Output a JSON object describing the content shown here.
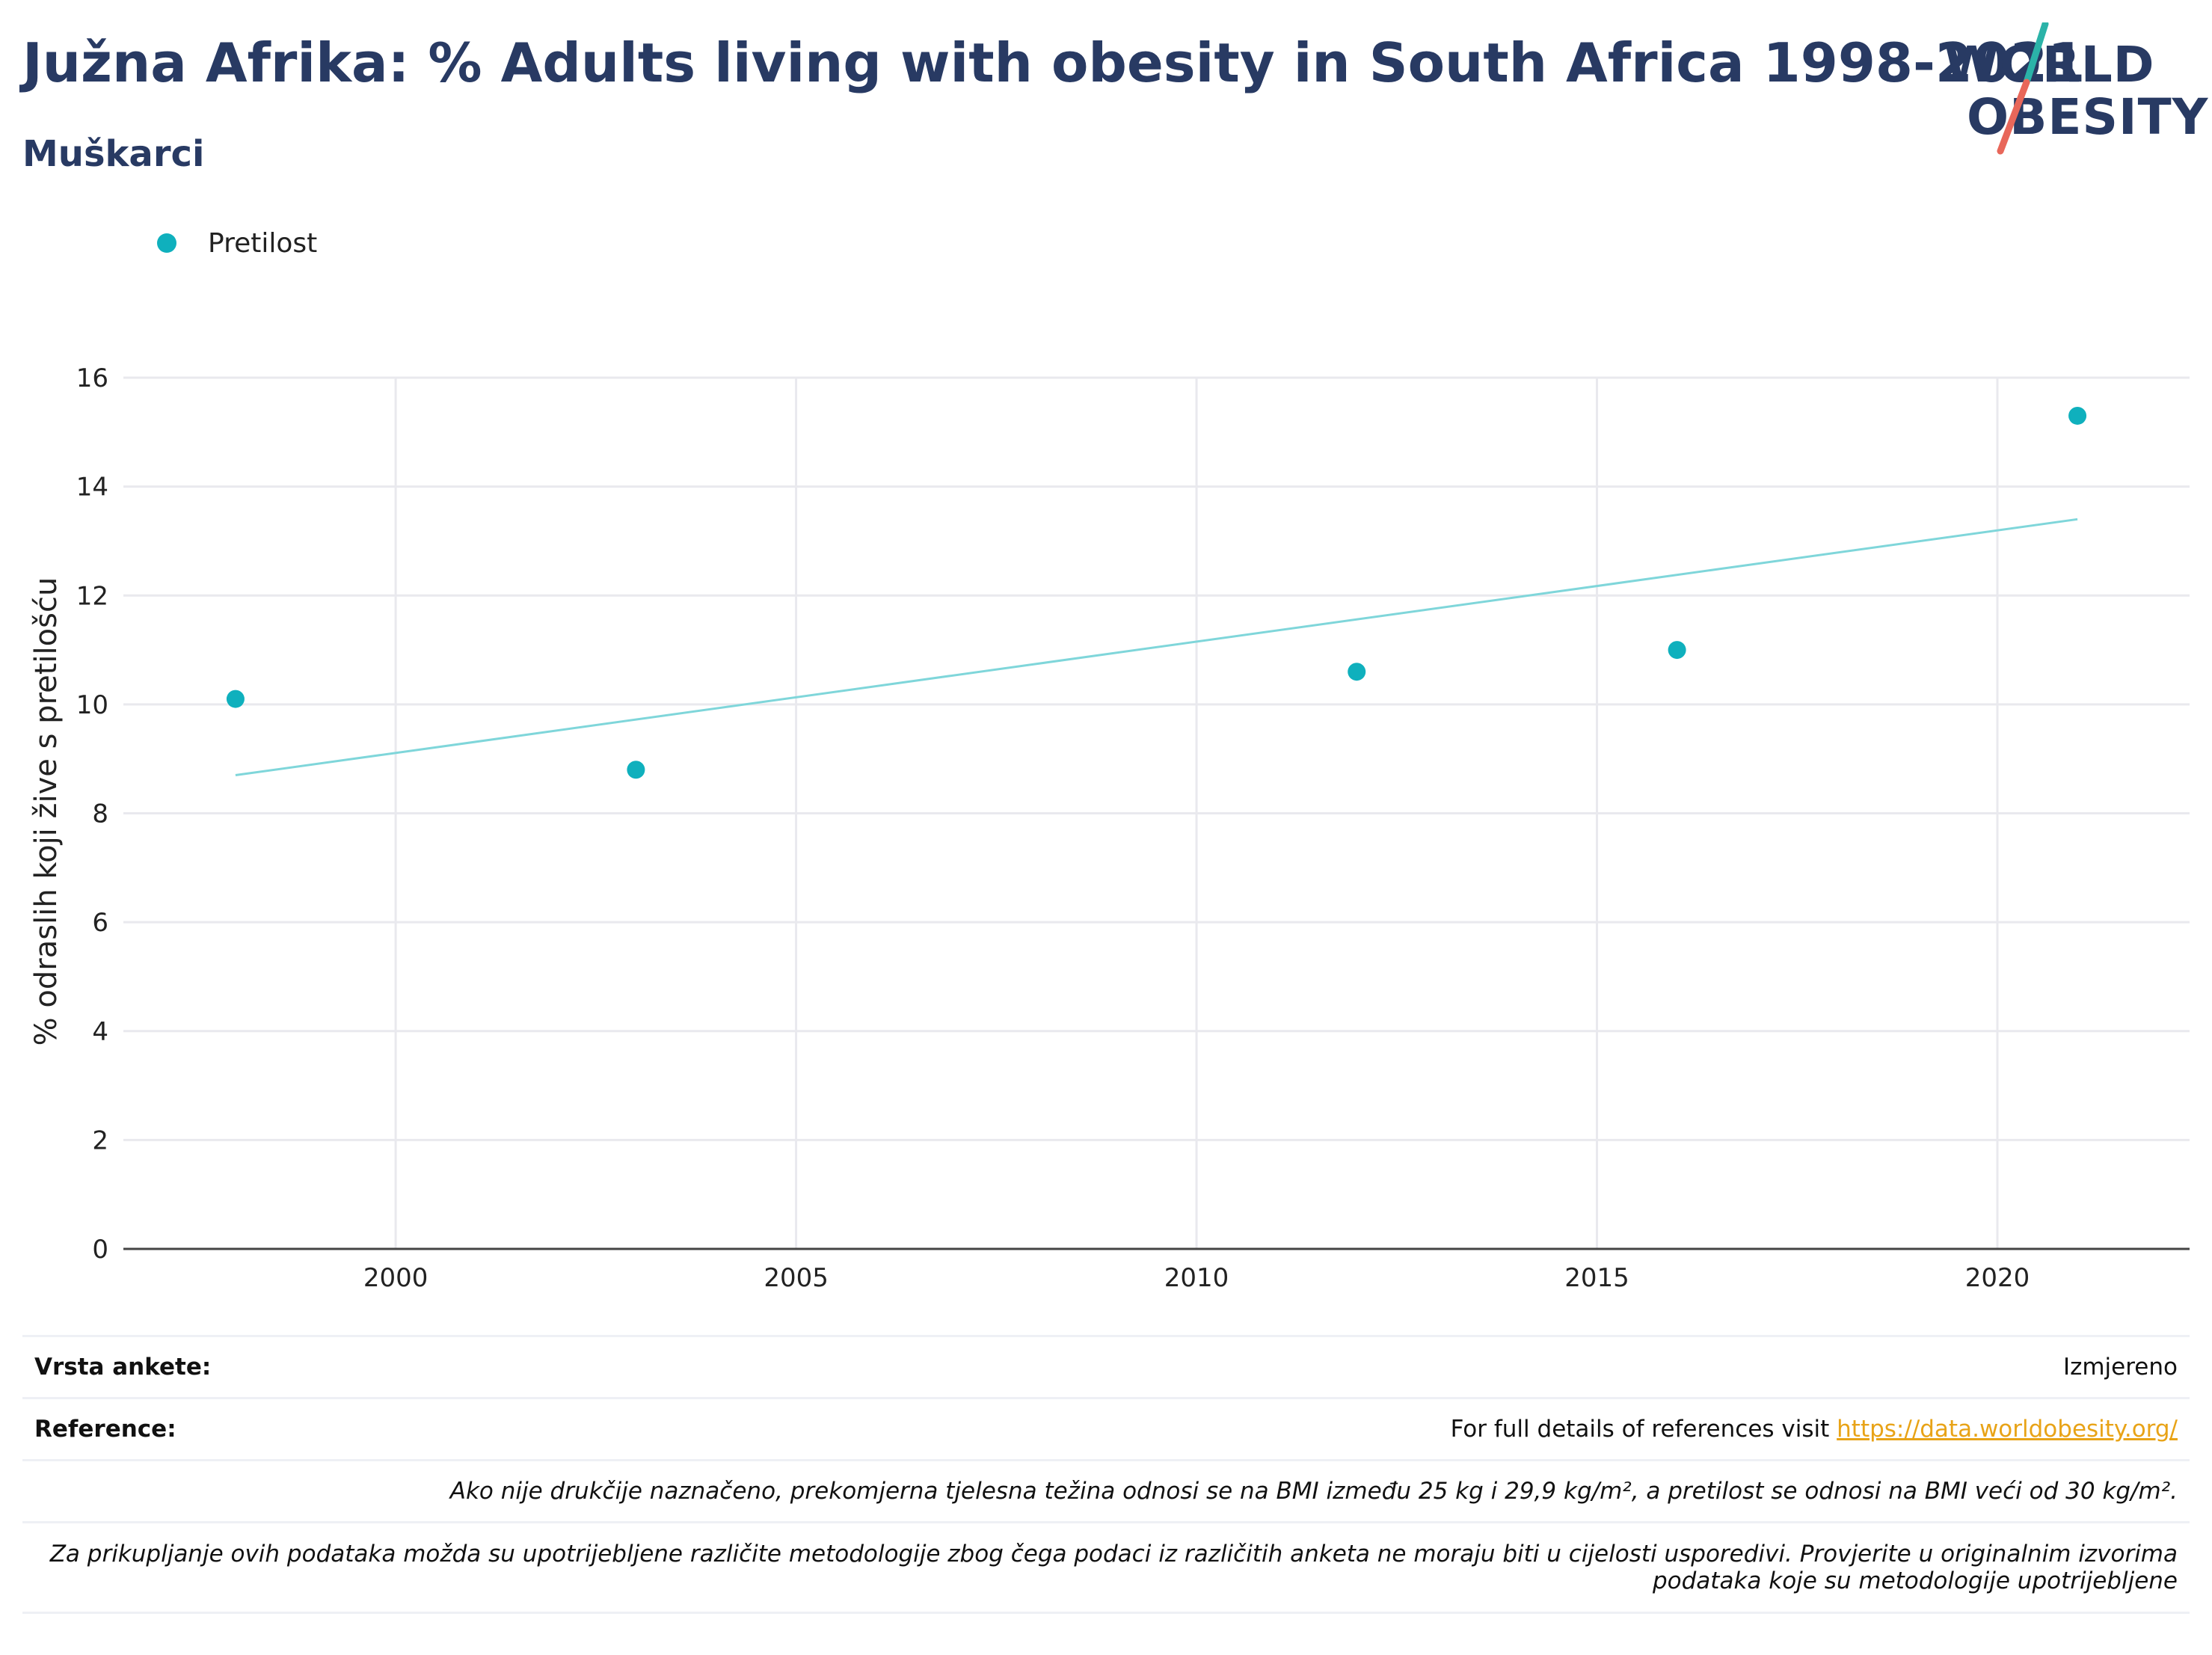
{
  "header": {
    "title": "Južna Afrika: % Adults living with obesity in South Africa 1998-2021",
    "subtitle": "Muškarci"
  },
  "logo": {
    "line1": "WORLD",
    "line2": "OBESITY",
    "accent_teal": "#2bb3a8",
    "accent_red": "#e8675a"
  },
  "legend": {
    "items": [
      {
        "label": "Pretilost",
        "color": "#0fb0bd"
      }
    ]
  },
  "chart_data": {
    "type": "scatter",
    "ylabel": "% odraslih koji žive s pretilošću",
    "xlabel": "",
    "xlim": [
      1996.6,
      2022.4
    ],
    "ylim": [
      0,
      16
    ],
    "x_ticks": [
      2000,
      2005,
      2010,
      2015,
      2020
    ],
    "y_ticks": [
      0,
      2,
      4,
      6,
      8,
      10,
      12,
      14,
      16
    ],
    "grid": true,
    "legend_position": "top-left",
    "series": [
      {
        "name": "Pretilost",
        "color": "#0fb0bd",
        "points": [
          {
            "x": 1998,
            "y": 10.1
          },
          {
            "x": 2003,
            "y": 8.8
          },
          {
            "x": 2012,
            "y": 10.6
          },
          {
            "x": 2016,
            "y": 11.0
          },
          {
            "x": 2021,
            "y": 15.3
          }
        ]
      }
    ],
    "trendline": {
      "color": "#7fd6da",
      "start": {
        "x": 1998,
        "y": 8.7
      },
      "end": {
        "x": 2021,
        "y": 13.4
      }
    }
  },
  "footer": {
    "survey_type_label": "Vrsta ankete:",
    "survey_type_value": "Izmjereno",
    "references_label": "Reference:",
    "references_text": "For full details of references visit ",
    "references_link": "https://data.worldobesity.org/",
    "note1": "Ako nije drukčije naznačeno, prekomjerna tjelesna težina odnosi se na BMI između 25 kg i 29,9 kg/m², a pretilost se odnosi na BMI veći od 30 kg/m².",
    "note2_line1": "Za prikupljanje ovih podataka možda su upotrijebljene različite metodologije zbog čega podaci iz različitih anketa ne moraju biti u cijelosti usporedivi. Provjerite u originalnim izvorima",
    "note2_line2": "podataka koje su metodologije upotrijebljene"
  }
}
